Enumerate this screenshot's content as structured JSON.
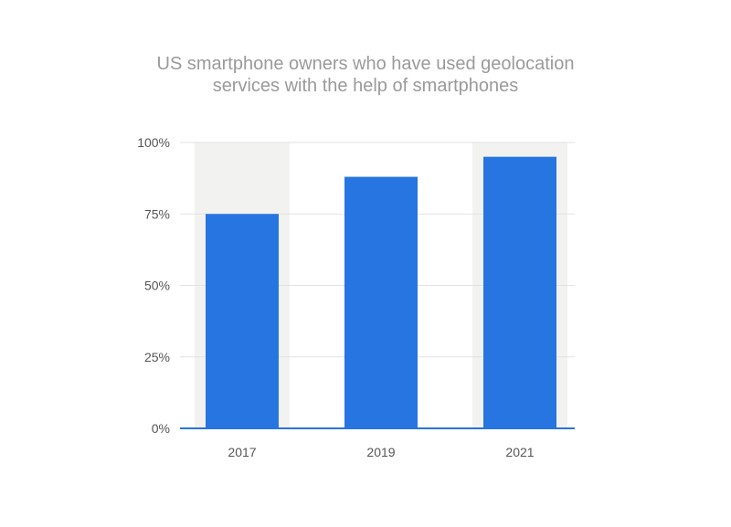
{
  "chart_data": {
    "type": "bar",
    "title_lines": [
      "US smartphone owners who have used geolocation",
      "services with the help of smartphones"
    ],
    "categories": [
      "2017",
      "2019",
      "2021"
    ],
    "values": [
      75,
      88,
      95
    ],
    "value_unit": "%",
    "ylim": [
      0,
      100
    ],
    "yticks": [
      0,
      25,
      50,
      75,
      100
    ],
    "ytick_labels": [
      "0%",
      "25%",
      "50%",
      "75%",
      "100%"
    ],
    "grid": true,
    "shaded_categories": [
      "2017",
      "2021"
    ],
    "colors": {
      "bar": "#2675e1",
      "axis": "#2675e1",
      "grid": "#e2e2e2",
      "shade": "#f2f2f0"
    }
  }
}
